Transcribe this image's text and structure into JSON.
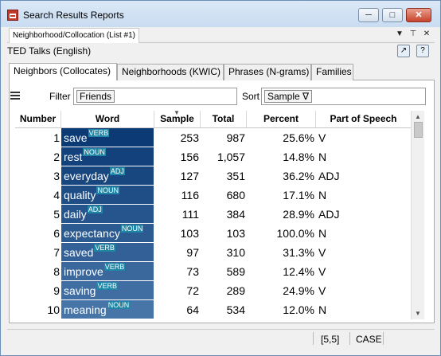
{
  "window": {
    "title": "Search Results Reports"
  },
  "doc_tab": {
    "label": "Neighborhood/Collocation (List #1)"
  },
  "subtitle": "TED Talks (English)",
  "tabs": [
    "Neighbors (Collocates)",
    "Neighborhoods (KWIC)",
    "Phrases (N-grams)",
    "Families"
  ],
  "filter": {
    "label": "Filter",
    "value": "Friends"
  },
  "sort": {
    "label": "Sort",
    "value": "Sample ∇"
  },
  "columns": [
    "Number",
    "Word",
    "Sample",
    "Total",
    "Percent",
    "Part of Speech"
  ],
  "rows": [
    {
      "number": "1",
      "word": "save",
      "tag": "VERB",
      "sample": "253",
      "total": "987",
      "percent": "25.6%",
      "pos": "V"
    },
    {
      "number": "2",
      "word": "rest",
      "tag": "NOUN",
      "sample": "156",
      "total": "1,057",
      "percent": "14.8%",
      "pos": "N"
    },
    {
      "number": "3",
      "word": "everyday",
      "tag": "ADJ",
      "sample": "127",
      "total": "351",
      "percent": "36.2%",
      "pos": "ADJ"
    },
    {
      "number": "4",
      "word": "quality",
      "tag": "NOUN",
      "sample": "116",
      "total": "680",
      "percent": "17.1%",
      "pos": "N"
    },
    {
      "number": "5",
      "word": "daily",
      "tag": "ADJ",
      "sample": "111",
      "total": "384",
      "percent": "28.9%",
      "pos": "ADJ"
    },
    {
      "number": "6",
      "word": "expectancy",
      "tag": "NOUN",
      "sample": "103",
      "total": "103",
      "percent": "100.0%",
      "pos": "N"
    },
    {
      "number": "7",
      "word": "saved",
      "tag": "VERB",
      "sample": "97",
      "total": "310",
      "percent": "31.3%",
      "pos": "V"
    },
    {
      "number": "8",
      "word": "improve",
      "tag": "VERB",
      "sample": "73",
      "total": "589",
      "percent": "12.4%",
      "pos": "V"
    },
    {
      "number": "9",
      "word": "saving",
      "tag": "VERB",
      "sample": "72",
      "total": "289",
      "percent": "24.9%",
      "pos": "V"
    },
    {
      "number": "10",
      "word": "meaning",
      "tag": "NOUN",
      "sample": "64",
      "total": "534",
      "percent": "12.0%",
      "pos": "N"
    }
  ],
  "status": {
    "position": "[5,5]",
    "mode": "CASE"
  },
  "colors": {
    "word_bg_strong": "#0b3a75",
    "word_bg_light": "#4775a8",
    "tag_bg": "#1f86a6",
    "titlebar": "#cfe0f3"
  },
  "icons": {
    "app": "report-icon",
    "export": "export-icon",
    "help": "help-icon",
    "menu": "hamburger-icon"
  }
}
